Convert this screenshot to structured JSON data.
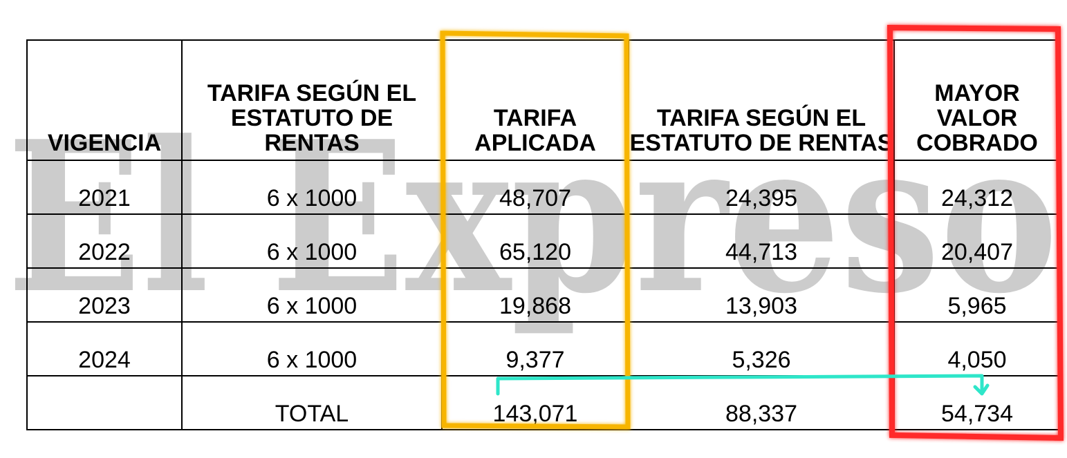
{
  "watermark": {
    "text": "El Expreso"
  },
  "table": {
    "headers": [
      "VIGENCIA",
      "TARIFA SEGÚN EL ESTATUTO DE RENTAS",
      "TARIFA APLICADA",
      "TARIFA SEGÚN EL ESTATUTO DE RENTAS",
      "MAYOR VALOR COBRADO"
    ],
    "rows": [
      [
        "2021",
        "6 x 1000",
        "48,707",
        "24,395",
        "24,312"
      ],
      [
        "2022",
        "6 x 1000",
        "65,120",
        "44,713",
        "20,407"
      ],
      [
        "2023",
        "6 x 1000",
        "19,868",
        "13,903",
        "5,965"
      ],
      [
        "2024",
        "6 x 1000",
        "9,377",
        "5,326",
        "4,050"
      ]
    ],
    "total": [
      "",
      "TOTAL",
      "143,071",
      "88,337",
      "54,734"
    ]
  },
  "highlights": {
    "applied_color": "#f7b500",
    "overcharge_color": "#ff2a2a",
    "arrow_color": "#2ee6c9"
  }
}
